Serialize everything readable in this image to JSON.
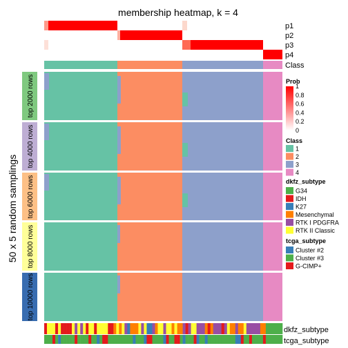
{
  "chart_data": {
    "type": "heatmap",
    "title": "membership heatmap, k = 4",
    "ylabel": "50 x 5 random samplings",
    "top_rows": [
      "p1",
      "p2",
      "p3",
      "p4",
      "Class"
    ],
    "bottom_rows": [
      "dkfz_subtype",
      "tcga_subtype"
    ],
    "row_groups": [
      "top 2000 rows",
      "top 4000 rows",
      "top 6000 rows",
      "top 8000 rows",
      "top 10000 rows"
    ],
    "group_colors": [
      "#7fc97f",
      "#beaed4",
      "#fdc086",
      "#ffff99",
      "#386cb0"
    ],
    "class_colors": {
      "1": "#66c2a5",
      "2": "#fc8d62",
      "3": "#8da0cb",
      "4": "#e78ac3"
    },
    "class_widths": [
      106,
      94,
      117,
      28
    ],
    "prob_legend": {
      "title": "Prob",
      "ticks": [
        "1",
        "0.8",
        "0.6",
        "0.4",
        "0.2",
        "0"
      ],
      "low_color": "#ffffff",
      "high_color": "#ff0000"
    },
    "class_legend": {
      "title": "Class",
      "labels": [
        "1",
        "2",
        "3",
        "4"
      ]
    },
    "dkfz_legend": {
      "title": "dkfz_subtype",
      "labels": [
        "G34",
        "IDH",
        "K27",
        "Mesenchymal",
        "RTK I PDGFRA",
        "RTK II Classic"
      ],
      "colors": [
        "#4daf4a",
        "#e41a1c",
        "#377eb8",
        "#ff7f00",
        "#984ea3",
        "#ffff33"
      ]
    },
    "tcga_legend": {
      "title": "tcga_subtype",
      "labels": [
        "Cluster #2",
        "Cluster #3",
        "G-CIMP+"
      ],
      "colors": [
        "#377eb8",
        "#4daf4a",
        "#e41a1c"
      ]
    }
  }
}
